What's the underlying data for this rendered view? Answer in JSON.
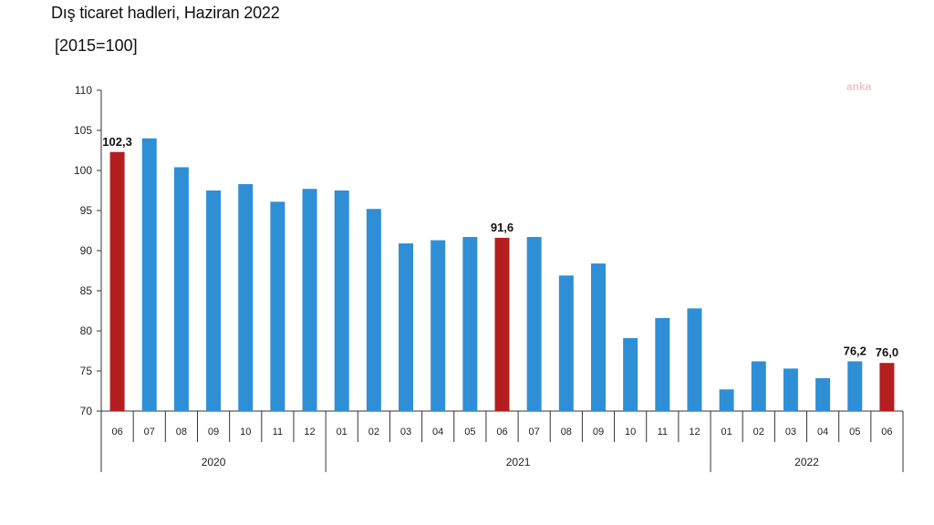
{
  "title": "Dış ticaret hadleri, Haziran 2022",
  "subtitle": "[2015=100]",
  "watermark": "anka",
  "chart_data": {
    "type": "bar",
    "title": "Dış ticaret hadleri, Haziran 2022",
    "subtitle": "[2015=100]",
    "ylim": [
      70,
      110
    ],
    "yticks": [
      70,
      75,
      80,
      85,
      90,
      95,
      100,
      105,
      110
    ],
    "grid": false,
    "categories": [
      "06",
      "07",
      "08",
      "09",
      "10",
      "11",
      "12",
      "01",
      "02",
      "03",
      "04",
      "05",
      "06",
      "07",
      "08",
      "09",
      "10",
      "11",
      "12",
      "01",
      "02",
      "03",
      "04",
      "05",
      "06"
    ],
    "years": [
      {
        "label": "2020",
        "count": 7
      },
      {
        "label": "2021",
        "count": 12
      },
      {
        "label": "2022",
        "count": 6
      }
    ],
    "values": [
      102.3,
      104.0,
      100.4,
      97.5,
      98.3,
      96.1,
      97.7,
      97.5,
      95.2,
      90.9,
      91.3,
      91.7,
      91.6,
      91.7,
      86.9,
      88.4,
      79.1,
      81.6,
      82.8,
      72.7,
      76.2,
      75.3,
      74.1,
      76.2,
      76.0
    ],
    "highlight": [
      0,
      12,
      24
    ],
    "data_labels": [
      {
        "index": 0,
        "text": "102,3"
      },
      {
        "index": 12,
        "text": "91,6"
      },
      {
        "index": 23,
        "text": "76,2"
      },
      {
        "index": 24,
        "text": "76,0"
      }
    ],
    "colors": {
      "bar": "#2f8fd6",
      "highlight": "#b51e1e",
      "axis": "#333333"
    }
  }
}
